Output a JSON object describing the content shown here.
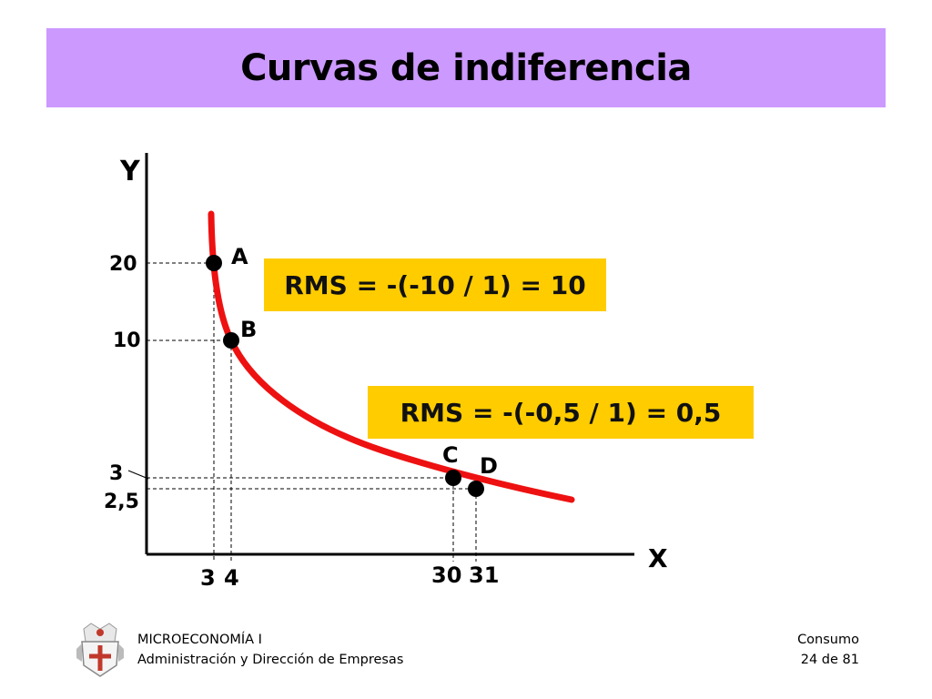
{
  "title": "Curvas de indiferencia",
  "chart_data": {
    "type": "line",
    "xlabel": "X",
    "ylabel": "Y",
    "y_ticks": [
      "20",
      "10",
      "3",
      "2,5"
    ],
    "x_ticks": [
      "3",
      "4",
      "30",
      "31"
    ],
    "points": [
      {
        "label": "A",
        "x": 3,
        "y": 20
      },
      {
        "label": "B",
        "x": 4,
        "y": 10
      },
      {
        "label": "C",
        "x": 30,
        "y": 3
      },
      {
        "label": "D",
        "x": 31,
        "y": 2.5
      }
    ],
    "annotations": [
      "RMS = -(-10 / 1) = 10",
      "RMS = -(-0,5 / 1) = 0,5"
    ],
    "curve_color": "#ee1111",
    "annotation_bg": "#ffcc00"
  },
  "footer": {
    "course": "MICROECONOMÍA I",
    "program": "Administración y Dirección de Empresas",
    "topic": "Consumo",
    "page": "24 de 81"
  },
  "colors": {
    "title_bg": "#cc99ff"
  }
}
